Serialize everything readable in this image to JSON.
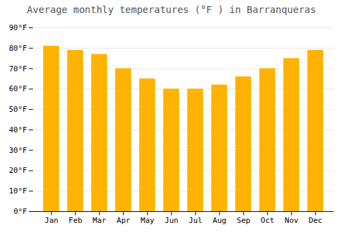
{
  "chart_data": {
    "type": "bar",
    "title": "Average monthly temperatures (°F ) in Barranqueras",
    "categories": [
      "Jan",
      "Feb",
      "Mar",
      "Apr",
      "May",
      "Jun",
      "Jul",
      "Aug",
      "Sep",
      "Oct",
      "Nov",
      "Dec"
    ],
    "values": [
      81,
      79,
      77,
      70,
      65,
      60,
      60,
      62,
      66,
      70,
      75,
      79
    ],
    "color": "#FFB300",
    "ylim": [
      0,
      90
    ],
    "yticks": [
      {
        "value": 0,
        "label": "0°F"
      },
      {
        "value": 10,
        "label": "10°F"
      },
      {
        "value": 20,
        "label": "20°F"
      },
      {
        "value": 30,
        "label": "30°F"
      },
      {
        "value": 40,
        "label": "40°F"
      },
      {
        "value": 50,
        "label": "50°F"
      },
      {
        "value": 60,
        "label": "60°F"
      },
      {
        "value": 70,
        "label": "70°F"
      },
      {
        "value": 80,
        "label": "80°F"
      },
      {
        "value": 90,
        "label": "90°F"
      }
    ],
    "grid": true
  }
}
